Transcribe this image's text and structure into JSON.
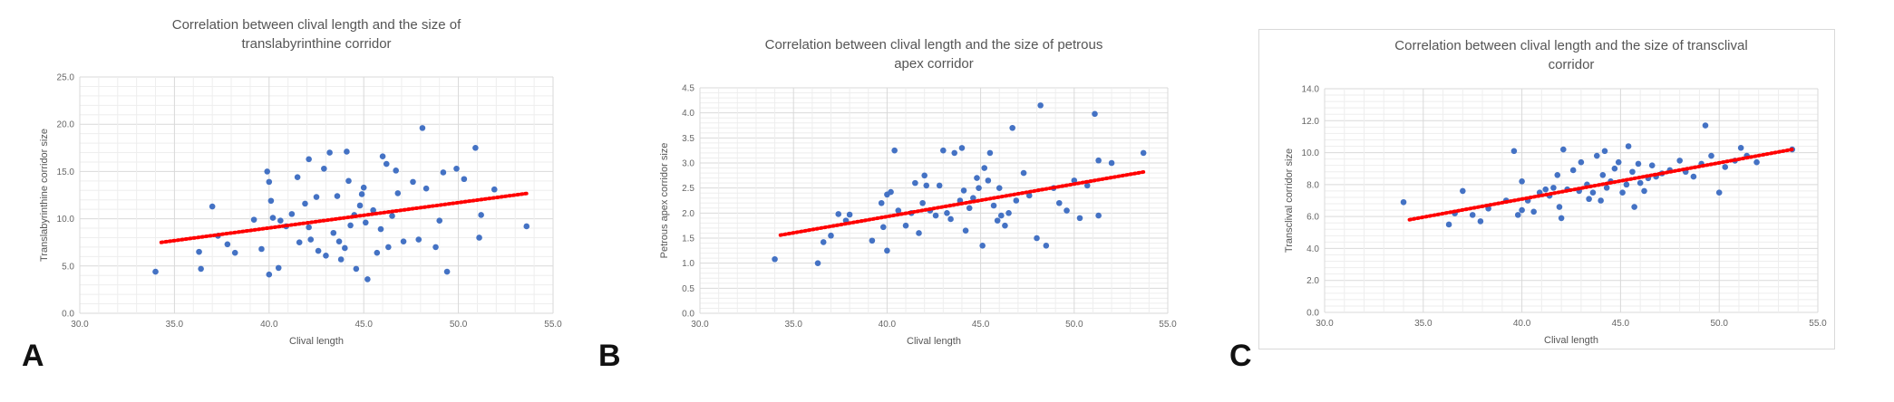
{
  "figure": {
    "panel_labels": [
      "A",
      "B",
      "C"
    ]
  },
  "chart_data": [
    {
      "type": "scatter",
      "title_lines": [
        "Correlation between clival length and the size of",
        "translabyrinthine corridor"
      ],
      "xlabel": "Clival length",
      "ylabel": "Translabyrinthine corridor size",
      "xlim": [
        30.0,
        55.0
      ],
      "ylim": [
        0.0,
        25.0
      ],
      "x_ticks": [
        "30.0",
        "35.0",
        "40.0",
        "45.0",
        "50.0",
        "55.0"
      ],
      "y_ticks": [
        "0.0",
        "5.0",
        "10.0",
        "15.0",
        "20.0",
        "25.0"
      ],
      "grid": true,
      "point_color": "#4472c4",
      "trendline_color": "#ff0000",
      "trendline": {
        "x": [
          34.3,
          53.7
        ],
        "y": [
          7.5,
          12.7
        ]
      },
      "points": [
        [
          34.0,
          4.4
        ],
        [
          36.3,
          6.5
        ],
        [
          36.4,
          4.7
        ],
        [
          37.0,
          11.3
        ],
        [
          37.3,
          8.2
        ],
        [
          37.8,
          7.3
        ],
        [
          38.2,
          6.4
        ],
        [
          39.2,
          9.9
        ],
        [
          39.6,
          6.8
        ],
        [
          39.9,
          15.0
        ],
        [
          40.0,
          13.9
        ],
        [
          40.0,
          4.1
        ],
        [
          40.1,
          11.9
        ],
        [
          40.2,
          10.1
        ],
        [
          40.5,
          4.8
        ],
        [
          40.6,
          9.8
        ],
        [
          40.9,
          9.2
        ],
        [
          41.2,
          10.5
        ],
        [
          41.5,
          14.4
        ],
        [
          41.6,
          7.5
        ],
        [
          41.9,
          11.6
        ],
        [
          42.1,
          16.3
        ],
        [
          42.1,
          9.1
        ],
        [
          42.2,
          7.8
        ],
        [
          42.5,
          12.3
        ],
        [
          42.6,
          6.6
        ],
        [
          42.9,
          15.3
        ],
        [
          43.0,
          6.1
        ],
        [
          43.2,
          17.0
        ],
        [
          43.4,
          8.5
        ],
        [
          43.6,
          12.4
        ],
        [
          43.7,
          7.6
        ],
        [
          43.8,
          5.7
        ],
        [
          44.0,
          6.9
        ],
        [
          44.1,
          17.1
        ],
        [
          44.2,
          14.0
        ],
        [
          44.3,
          9.3
        ],
        [
          44.5,
          10.4
        ],
        [
          44.6,
          4.7
        ],
        [
          44.8,
          11.4
        ],
        [
          44.9,
          12.6
        ],
        [
          45.0,
          13.3
        ],
        [
          45.1,
          9.6
        ],
        [
          45.2,
          3.6
        ],
        [
          45.5,
          10.9
        ],
        [
          45.7,
          6.4
        ],
        [
          45.9,
          8.9
        ],
        [
          46.0,
          16.6
        ],
        [
          46.2,
          15.8
        ],
        [
          46.3,
          7.0
        ],
        [
          46.5,
          10.3
        ],
        [
          46.7,
          15.1
        ],
        [
          46.8,
          12.7
        ],
        [
          47.1,
          7.6
        ],
        [
          47.6,
          13.9
        ],
        [
          47.9,
          7.8
        ],
        [
          48.1,
          19.6
        ],
        [
          48.3,
          13.2
        ],
        [
          48.8,
          7.0
        ],
        [
          49.0,
          9.8
        ],
        [
          49.2,
          14.9
        ],
        [
          49.4,
          4.4
        ],
        [
          49.9,
          15.3
        ],
        [
          50.3,
          14.2
        ],
        [
          50.9,
          17.5
        ],
        [
          51.1,
          8.0
        ],
        [
          51.2,
          10.4
        ],
        [
          51.9,
          13.1
        ],
        [
          53.6,
          9.2
        ]
      ]
    },
    {
      "type": "scatter",
      "title_lines": [
        "Correlation between clival length and the size of petrous",
        "apex corridor"
      ],
      "xlabel": "Clival length",
      "ylabel": "Petrous apex corridor size",
      "xlim": [
        30.0,
        55.0
      ],
      "ylim": [
        0.0,
        4.5
      ],
      "x_ticks": [
        "30.0",
        "35.0",
        "40.0",
        "45.0",
        "50.0",
        "55.0"
      ],
      "y_ticks": [
        "0.0",
        "0.5",
        "1.0",
        "1.5",
        "2.0",
        "2.5",
        "3.0",
        "3.5",
        "4.0",
        "4.5"
      ],
      "grid": true,
      "point_color": "#4472c4",
      "trendline_color": "#ff0000",
      "trendline": {
        "x": [
          34.3,
          53.7
        ],
        "y": [
          1.56,
          2.82
        ]
      },
      "points": [
        [
          34.0,
          1.08
        ],
        [
          36.3,
          1.0
        ],
        [
          36.6,
          1.42
        ],
        [
          37.0,
          1.55
        ],
        [
          37.4,
          1.98
        ],
        [
          37.8,
          1.85
        ],
        [
          38.0,
          1.97
        ],
        [
          39.2,
          1.45
        ],
        [
          39.7,
          2.2
        ],
        [
          39.8,
          1.72
        ],
        [
          40.0,
          2.37
        ],
        [
          40.0,
          1.25
        ],
        [
          40.2,
          2.42
        ],
        [
          40.4,
          3.25
        ],
        [
          40.6,
          2.05
        ],
        [
          41.0,
          1.75
        ],
        [
          41.3,
          2.0
        ],
        [
          41.5,
          2.6
        ],
        [
          41.7,
          1.6
        ],
        [
          41.9,
          2.2
        ],
        [
          42.0,
          2.75
        ],
        [
          42.1,
          2.55
        ],
        [
          42.3,
          2.05
        ],
        [
          42.6,
          1.95
        ],
        [
          42.8,
          2.55
        ],
        [
          43.0,
          3.25
        ],
        [
          43.2,
          2.0
        ],
        [
          43.4,
          1.88
        ],
        [
          43.6,
          3.2
        ],
        [
          43.9,
          2.25
        ],
        [
          44.0,
          3.3
        ],
        [
          44.1,
          2.45
        ],
        [
          44.2,
          1.65
        ],
        [
          44.4,
          2.1
        ],
        [
          44.6,
          2.3
        ],
        [
          44.8,
          2.7
        ],
        [
          44.9,
          2.5
        ],
        [
          45.1,
          1.35
        ],
        [
          45.2,
          2.9
        ],
        [
          45.4,
          2.65
        ],
        [
          45.5,
          3.2
        ],
        [
          45.7,
          2.15
        ],
        [
          45.9,
          1.85
        ],
        [
          46.0,
          2.5
        ],
        [
          46.1,
          1.95
        ],
        [
          46.3,
          1.75
        ],
        [
          46.5,
          2.0
        ],
        [
          46.7,
          3.7
        ],
        [
          46.9,
          2.25
        ],
        [
          47.3,
          2.8
        ],
        [
          47.6,
          2.35
        ],
        [
          48.0,
          1.5
        ],
        [
          48.2,
          4.15
        ],
        [
          48.5,
          1.35
        ],
        [
          48.9,
          2.5
        ],
        [
          49.2,
          2.2
        ],
        [
          49.6,
          2.05
        ],
        [
          50.0,
          2.65
        ],
        [
          50.3,
          1.9
        ],
        [
          50.7,
          2.55
        ],
        [
          51.1,
          3.98
        ],
        [
          51.3,
          3.05
        ],
        [
          51.3,
          1.95
        ],
        [
          52.0,
          3.0
        ],
        [
          53.7,
          3.2
        ]
      ]
    },
    {
      "type": "scatter",
      "title_lines": [
        "Correlation between clival length and the size of transclival",
        "corridor"
      ],
      "xlabel": "Clival length",
      "ylabel": "Transclival corridor size",
      "xlim": [
        30.0,
        55.0
      ],
      "ylim": [
        0.0,
        14.0
      ],
      "x_ticks": [
        "30.0",
        "35.0",
        "40.0",
        "45.0",
        "50.0",
        "55.0"
      ],
      "y_ticks": [
        "0.0",
        "2.0",
        "4.0",
        "6.0",
        "8.0",
        "10.0",
        "12.0",
        "14.0"
      ],
      "grid": true,
      "point_color": "#4472c4",
      "trendline_color": "#ff0000",
      "trendline": {
        "x": [
          34.3,
          53.7
        ],
        "y": [
          5.8,
          10.2
        ]
      },
      "points": [
        [
          34.0,
          6.9
        ],
        [
          36.3,
          5.5
        ],
        [
          36.6,
          6.2
        ],
        [
          37.0,
          7.6
        ],
        [
          37.5,
          6.1
        ],
        [
          37.9,
          5.7
        ],
        [
          38.3,
          6.5
        ],
        [
          39.2,
          7.0
        ],
        [
          39.6,
          10.1
        ],
        [
          39.8,
          6.1
        ],
        [
          40.0,
          6.4
        ],
        [
          40.0,
          8.2
        ],
        [
          40.3,
          7.0
        ],
        [
          40.6,
          6.3
        ],
        [
          40.9,
          7.5
        ],
        [
          41.2,
          7.7
        ],
        [
          41.4,
          7.3
        ],
        [
          41.6,
          7.8
        ],
        [
          41.8,
          8.6
        ],
        [
          41.9,
          6.6
        ],
        [
          42.0,
          5.9
        ],
        [
          42.1,
          10.2
        ],
        [
          42.3,
          7.7
        ],
        [
          42.6,
          8.9
        ],
        [
          42.9,
          7.6
        ],
        [
          43.0,
          9.4
        ],
        [
          43.3,
          8.0
        ],
        [
          43.4,
          7.1
        ],
        [
          43.6,
          7.5
        ],
        [
          43.8,
          9.8
        ],
        [
          44.0,
          7.0
        ],
        [
          44.1,
          8.6
        ],
        [
          44.2,
          10.1
        ],
        [
          44.3,
          7.8
        ],
        [
          44.5,
          8.2
        ],
        [
          44.7,
          9.0
        ],
        [
          44.9,
          9.4
        ],
        [
          45.1,
          7.5
        ],
        [
          45.3,
          8.0
        ],
        [
          45.4,
          10.4
        ],
        [
          45.6,
          8.8
        ],
        [
          45.7,
          6.6
        ],
        [
          45.9,
          9.3
        ],
        [
          46.0,
          8.1
        ],
        [
          46.2,
          7.6
        ],
        [
          46.4,
          8.4
        ],
        [
          46.6,
          9.2
        ],
        [
          46.8,
          8.5
        ],
        [
          47.1,
          8.7
        ],
        [
          47.5,
          8.9
        ],
        [
          48.0,
          9.5
        ],
        [
          48.3,
          8.8
        ],
        [
          48.7,
          8.5
        ],
        [
          49.1,
          9.3
        ],
        [
          49.3,
          11.7
        ],
        [
          49.6,
          9.8
        ],
        [
          50.0,
          7.5
        ],
        [
          50.3,
          9.1
        ],
        [
          50.8,
          9.5
        ],
        [
          51.1,
          10.3
        ],
        [
          51.4,
          9.8
        ],
        [
          51.9,
          9.4
        ],
        [
          53.7,
          10.2
        ]
      ]
    }
  ]
}
